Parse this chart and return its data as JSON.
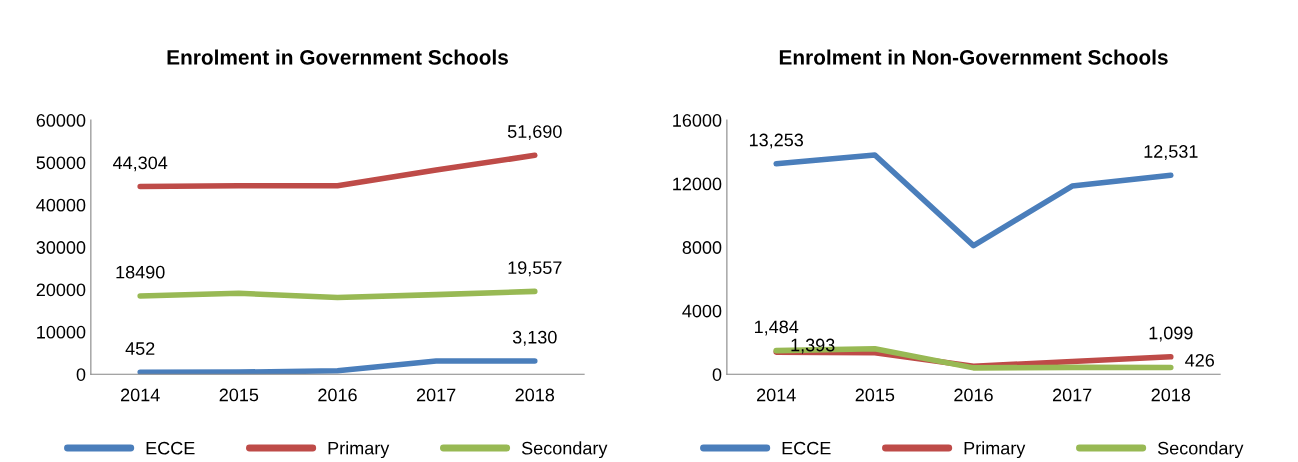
{
  "chart_data": [
    {
      "type": "line",
      "title": "Enrolment in Government Schools",
      "categories": [
        "2014",
        "2015",
        "2016",
        "2017",
        "2018"
      ],
      "ylim": [
        0,
        60000
      ],
      "yticks": [
        0,
        10000,
        20000,
        30000,
        40000,
        50000,
        60000
      ],
      "grid": false,
      "legend": "bottom",
      "series": [
        {
          "name": "ECCE",
          "color": "#4a7ebb",
          "values": [
            452,
            500,
            800,
            3100,
            3130
          ],
          "value_labels": [
            "452",
            null,
            null,
            null,
            "3,130"
          ]
        },
        {
          "name": "Primary",
          "color": "#be4b48",
          "values": [
            44304,
            44500,
            44500,
            48200,
            51690
          ],
          "value_labels": [
            "44,304",
            null,
            null,
            null,
            "51,690"
          ]
        },
        {
          "name": "Secondary",
          "color": "#98b954",
          "values": [
            18490,
            19100,
            18100,
            18800,
            19557
          ],
          "value_labels": [
            "18490",
            null,
            null,
            null,
            "19,557"
          ]
        }
      ]
    },
    {
      "type": "line",
      "title": "Enrolment in Non-Government Schools",
      "categories": [
        "2014",
        "2015",
        "2016",
        "2017",
        "2018"
      ],
      "ylim": [
        0,
        16000
      ],
      "yticks": [
        0,
        4000,
        8000,
        12000,
        16000
      ],
      "grid": false,
      "legend": "bottom",
      "series": [
        {
          "name": "ECCE",
          "color": "#4a7ebb",
          "values": [
            13253,
            13800,
            8100,
            11850,
            12531
          ],
          "value_labels": [
            "13,253",
            null,
            null,
            null,
            "12,531"
          ]
        },
        {
          "name": "Primary",
          "color": "#be4b48",
          "values": [
            1393,
            1350,
            500,
            800,
            1099
          ],
          "value_labels": [
            "1,393",
            null,
            null,
            null,
            "1,099"
          ]
        },
        {
          "name": "Secondary",
          "color": "#98b954",
          "values": [
            1484,
            1600,
            400,
            430,
            426
          ],
          "value_labels": [
            "1,484",
            null,
            null,
            null,
            "426"
          ]
        }
      ]
    }
  ]
}
